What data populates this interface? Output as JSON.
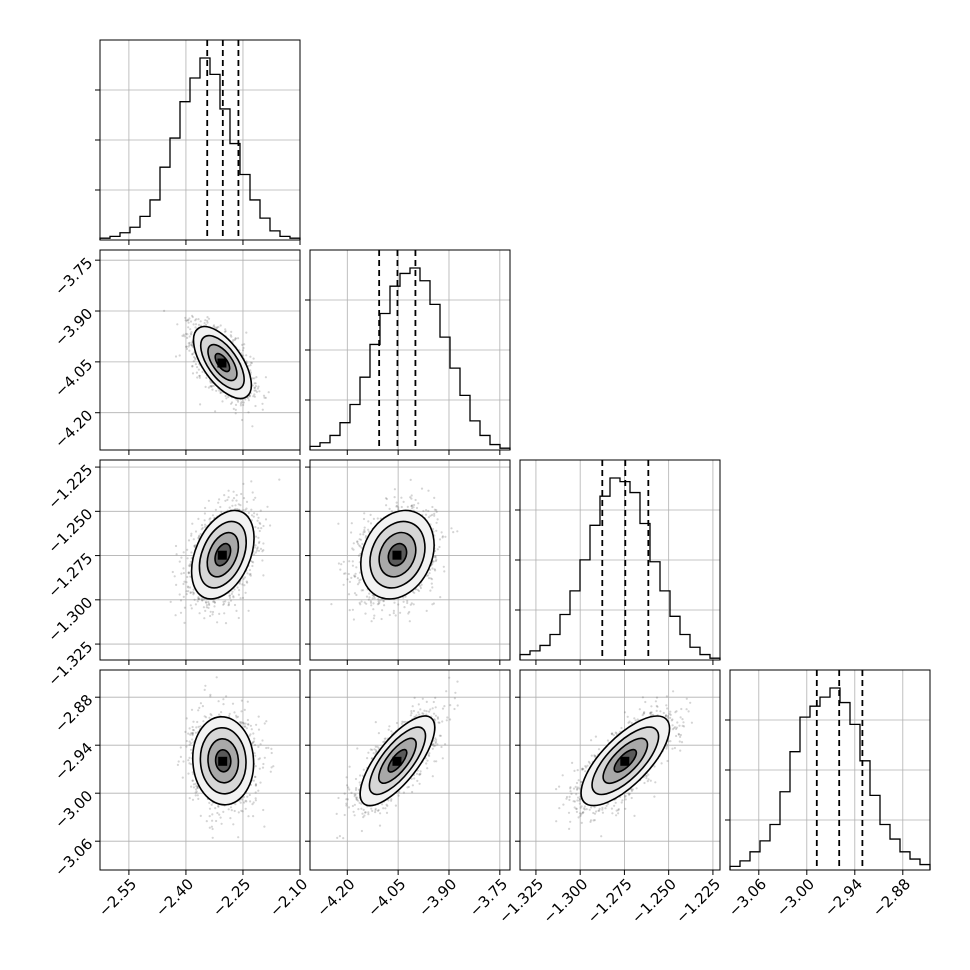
{
  "chart_data": {
    "type": "corner",
    "title": "",
    "n_params": 4,
    "axis_ticks": [
      [
        "−2.55",
        "−2.40",
        "−2.25",
        "−2.10"
      ],
      [
        "−4.20",
        "−4.05",
        "−3.90",
        "−3.75"
      ],
      [
        "−1.325",
        "−1.300",
        "−1.275",
        "−1.250",
        "−1.225"
      ],
      [
        "−3.06",
        "−3.00",
        "−2.94",
        "−2.88"
      ]
    ],
    "ranges": [
      [
        -2.626,
        -2.1
      ],
      [
        -4.31,
        -3.72
      ],
      [
        -1.334,
        -1.221
      ],
      [
        -3.096,
        -2.846
      ]
    ],
    "quantiles": [
      {
        "q16": -2.344,
        "q50": -2.303,
        "q84": -2.262
      },
      {
        "q16": -4.106,
        "q50": -4.052,
        "q84": -3.999
      },
      {
        "q16": -1.2875,
        "q50": -1.2745,
        "q84": -1.2615
      },
      {
        "q16": -2.9875,
        "q50": -2.9595,
        "q84": -2.9305
      }
    ],
    "histograms": [
      [
        0.01,
        0.02,
        0.04,
        0.07,
        0.13,
        0.22,
        0.4,
        0.56,
        0.76,
        0.89,
        1.0,
        0.91,
        0.72,
        0.53,
        0.36,
        0.22,
        0.12,
        0.05,
        0.02,
        0.01
      ],
      [
        0.02,
        0.04,
        0.08,
        0.15,
        0.25,
        0.4,
        0.58,
        0.75,
        0.9,
        0.97,
        1.0,
        0.93,
        0.8,
        0.62,
        0.45,
        0.3,
        0.16,
        0.08,
        0.03,
        0.01
      ],
      [
        0.03,
        0.05,
        0.08,
        0.14,
        0.25,
        0.38,
        0.55,
        0.74,
        0.9,
        1.0,
        0.98,
        0.92,
        0.75,
        0.54,
        0.38,
        0.24,
        0.14,
        0.07,
        0.03,
        0.01
      ],
      [
        0.02,
        0.05,
        0.1,
        0.16,
        0.25,
        0.43,
        0.65,
        0.84,
        0.9,
        0.95,
        1.0,
        0.92,
        0.8,
        0.6,
        0.41,
        0.25,
        0.17,
        0.1,
        0.06,
        0.03
      ]
    ],
    "pairs": [
      {
        "x": 0,
        "y": 1,
        "mean": [
          -2.304,
          -4.052
        ],
        "sd": [
          0.038,
          0.053
        ],
        "corr": -0.62
      },
      {
        "x": 0,
        "y": 2,
        "mean": [
          -2.303,
          -1.2745
        ],
        "sd": [
          0.041,
          0.0125
        ],
        "corr": 0.38
      },
      {
        "x": 1,
        "y": 2,
        "mean": [
          -4.052,
          -1.2745
        ],
        "sd": [
          0.054,
          0.0125
        ],
        "corr": 0.22
      },
      {
        "x": 0,
        "y": 3,
        "mean": [
          -2.302,
          -2.9595
        ],
        "sd": [
          0.04,
          0.0275
        ],
        "corr": -0.05
      },
      {
        "x": 1,
        "y": 3,
        "mean": [
          -4.052,
          -2.9595
        ],
        "sd": [
          0.055,
          0.028
        ],
        "corr": 0.74
      },
      {
        "x": 2,
        "y": 3,
        "mean": [
          -1.2745,
          -2.9595
        ],
        "sd": [
          0.0125,
          0.028
        ],
        "corr": 0.72
      }
    ],
    "contour_levels_sigma": [
      0.5,
      1.0,
      1.5,
      2.0
    ],
    "colors": {
      "line": "#000000",
      "grid": "#b0b0b0",
      "points": "#555555"
    },
    "grid": true
  }
}
